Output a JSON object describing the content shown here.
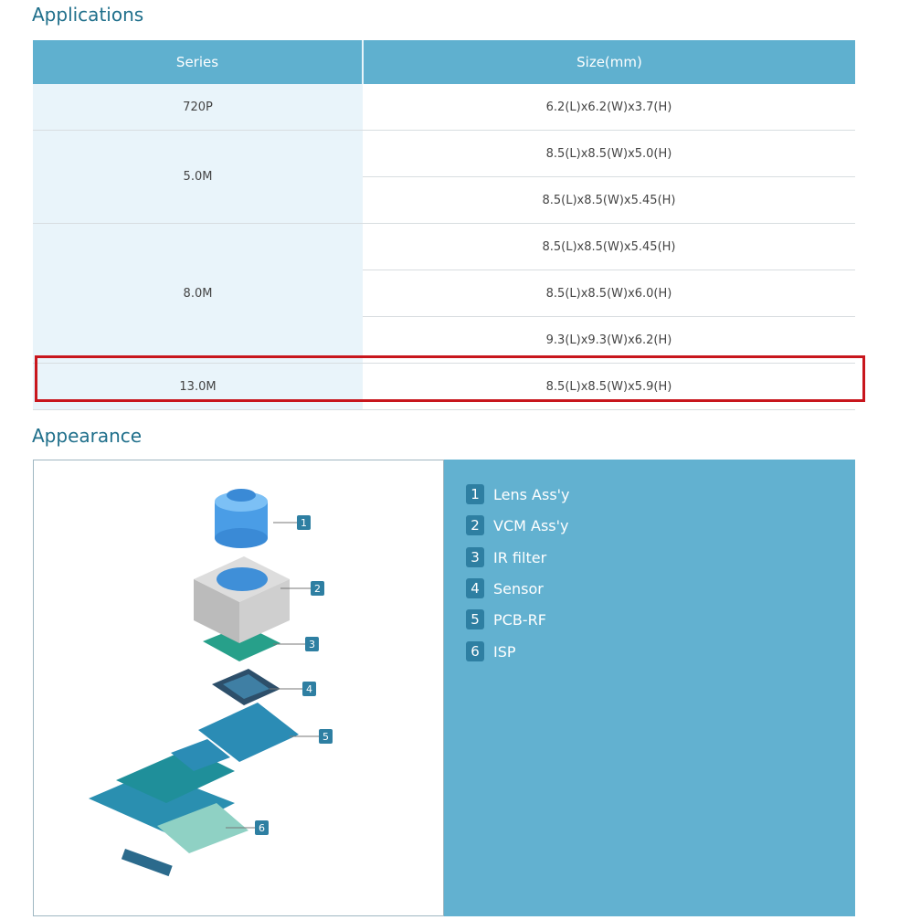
{
  "applications": {
    "title": "Applications",
    "headers": [
      "Series",
      "Size(mm)"
    ],
    "rows": [
      {
        "series": "720P",
        "sizes": [
          "6.2(L)x6.2(W)x3.7(H)"
        ]
      },
      {
        "series": "5.0M",
        "sizes": [
          "8.5(L)x8.5(W)x5.0(H)",
          "8.5(L)x8.5(W)x5.45(H)"
        ]
      },
      {
        "series": "8.0M",
        "sizes": [
          "8.5(L)x8.5(W)x5.45(H)",
          "8.5(L)x8.5(W)x6.0(H)",
          "9.3(L)x9.3(W)x6.2(H)"
        ]
      },
      {
        "series": "13.0M",
        "sizes": [
          "8.5(L)x8.5(W)x5.9(H)"
        ],
        "highlighted": true
      }
    ],
    "highlight_color": "#c8161d"
  },
  "appearance": {
    "title": "Appearance",
    "parts": [
      {
        "num": "1",
        "label": "Lens Ass'y"
      },
      {
        "num": "2",
        "label": "VCM Ass'y"
      },
      {
        "num": "3",
        "label": "IR filter"
      },
      {
        "num": "4",
        "label": "Sensor"
      },
      {
        "num": "5",
        "label": "PCB-RF"
      },
      {
        "num": "6",
        "label": "ISP"
      }
    ]
  }
}
